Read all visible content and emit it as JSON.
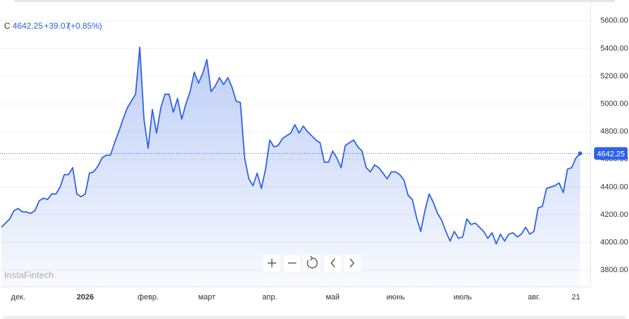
{
  "header": {
    "symbol": "C",
    "change": "+39.07",
    "change_pct": "(+0.85%)"
  },
  "watermark": "InstaFintech",
  "chart_data": {
    "type": "area",
    "color": "#2f62e6",
    "grid": true,
    "ylim": [
      3700,
      5700
    ],
    "yticks": [
      {
        "value": 3800,
        "label": "3800.00"
      },
      {
        "value": 4000,
        "label": "4000.00"
      },
      {
        "value": 4200,
        "label": "4200.00"
      },
      {
        "value": 4400,
        "label": "4400.00"
      },
      {
        "value": 4600,
        "label": "4600.00"
      },
      {
        "value": 4800,
        "label": "4800.00"
      },
      {
        "value": 5000,
        "label": "5000.00"
      },
      {
        "value": 5200,
        "label": "5200.00"
      },
      {
        "value": 5400,
        "label": "5400.00"
      },
      {
        "value": 5600,
        "label": "5600.00"
      }
    ],
    "categories": [
      null,
      null,
      null,
      null,
      "дек.",
      null,
      null,
      null,
      null,
      null,
      null,
      null,
      null,
      null,
      null,
      null,
      null,
      null,
      null,
      null,
      "2026",
      null,
      null,
      null,
      null,
      null,
      null,
      null,
      null,
      null,
      null,
      null,
      null,
      null,
      null,
      "февр.",
      null,
      null,
      null,
      null,
      null,
      null,
      null,
      null,
      null,
      null,
      null,
      null,
      null,
      "март",
      null,
      null,
      null,
      null,
      null,
      null,
      null,
      null,
      null,
      null,
      null,
      null,
      null,
      null,
      "апр.",
      null,
      null,
      null,
      null,
      null,
      null,
      null,
      null,
      null,
      null,
      null,
      null,
      null,
      null,
      "май",
      null,
      null,
      null,
      null,
      null,
      null,
      null,
      null,
      null,
      null,
      null,
      null,
      null,
      null,
      "июнь",
      null,
      null,
      null,
      null,
      null,
      null,
      null,
      null,
      null,
      null,
      null,
      null,
      null,
      null,
      null,
      "июль",
      null,
      null,
      null,
      null,
      null,
      null,
      null,
      null,
      null,
      null,
      null,
      null,
      null,
      null,
      null,
      null,
      "авг.",
      null,
      null,
      null,
      null,
      null,
      null,
      null,
      null,
      null,
      "21",
      null
    ],
    "values": [
      4110,
      4140,
      4170,
      4230,
      4245,
      4220,
      4220,
      4210,
      4230,
      4300,
      4320,
      4310,
      4350,
      4350,
      4400,
      4490,
      4490,
      4540,
      4350,
      4330,
      4350,
      4500,
      4510,
      4550,
      4610,
      4630,
      4630,
      4720,
      4800,
      4890,
      4970,
      5020,
      5070,
      5410,
      4890,
      4680,
      4960,
      4790,
      4970,
      5070,
      5070,
      4940,
      5040,
      4890,
      5000,
      5090,
      5230,
      5150,
      5220,
      5320,
      5090,
      5130,
      5190,
      5140,
      5190,
      5120,
      5020,
      5010,
      4610,
      4460,
      4410,
      4500,
      4390,
      4530,
      4740,
      4690,
      4700,
      4750,
      4770,
      4790,
      4850,
      4790,
      4840,
      4800,
      4770,
      4740,
      4720,
      4580,
      4580,
      4660,
      4610,
      4540,
      4700,
      4720,
      4740,
      4690,
      4660,
      4540,
      4510,
      4560,
      4540,
      4500,
      4460,
      4510,
      4510,
      4490,
      4450,
      4340,
      4310,
      4180,
      4080,
      4230,
      4350,
      4290,
      4210,
      4160,
      4080,
      4010,
      4080,
      4030,
      4040,
      4170,
      4130,
      4140,
      4110,
      4080,
      4030,
      4070,
      3990,
      4060,
      4010,
      4060,
      4070,
      4040,
      4060,
      4110,
      4060,
      4080,
      4250,
      4260,
      4390,
      4400,
      4410,
      4430,
      4360,
      4530,
      4540,
      4610,
      4642.25
    ]
  }
}
